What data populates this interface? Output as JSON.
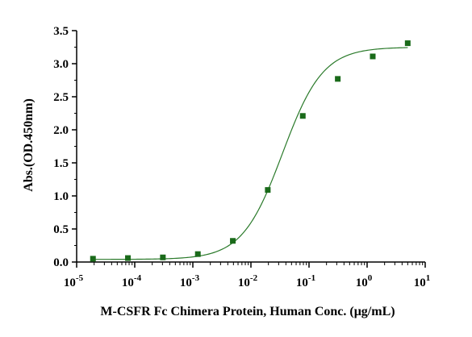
{
  "chart_data": {
    "type": "scatter",
    "title": "",
    "xlabel": "M-CSFR Fc Chimera Protein, Human Conc. (μg/mL)",
    "ylabel": "Abs.(OD.450nm)",
    "x_scale": "log",
    "xlim": [
      1e-05,
      10
    ],
    "ylim": [
      0,
      3.5
    ],
    "x_ticks": [
      {
        "base": "10",
        "exp": "-5"
      },
      {
        "base": "10",
        "exp": "-4"
      },
      {
        "base": "10",
        "exp": "-3"
      },
      {
        "base": "10",
        "exp": "-2"
      },
      {
        "base": "10",
        "exp": "-1"
      },
      {
        "base": "10",
        "exp": "0"
      },
      {
        "base": "10",
        "exp": "1"
      }
    ],
    "y_ticks": [
      "0.0",
      "0.5",
      "1.0",
      "1.5",
      "2.0",
      "2.5",
      "3.0",
      "3.5"
    ],
    "grid": false,
    "colors": {
      "points": "#1a6a1a",
      "curve": "#2a7a2a"
    },
    "series": [
      {
        "x": [
          1.91e-05,
          7.63e-05,
          0.000305,
          0.00122,
          0.00488,
          0.0195,
          0.0781,
          0.3125,
          1.25,
          5
        ],
        "values": [
          0.05,
          0.06,
          0.07,
          0.12,
          0.32,
          1.09,
          2.21,
          2.77,
          3.11,
          3.31
        ]
      }
    ],
    "fit": {
      "model": "4PL",
      "bottom": 0.04,
      "top": 3.25,
      "ec50": 0.035,
      "hill": 1.25
    }
  }
}
